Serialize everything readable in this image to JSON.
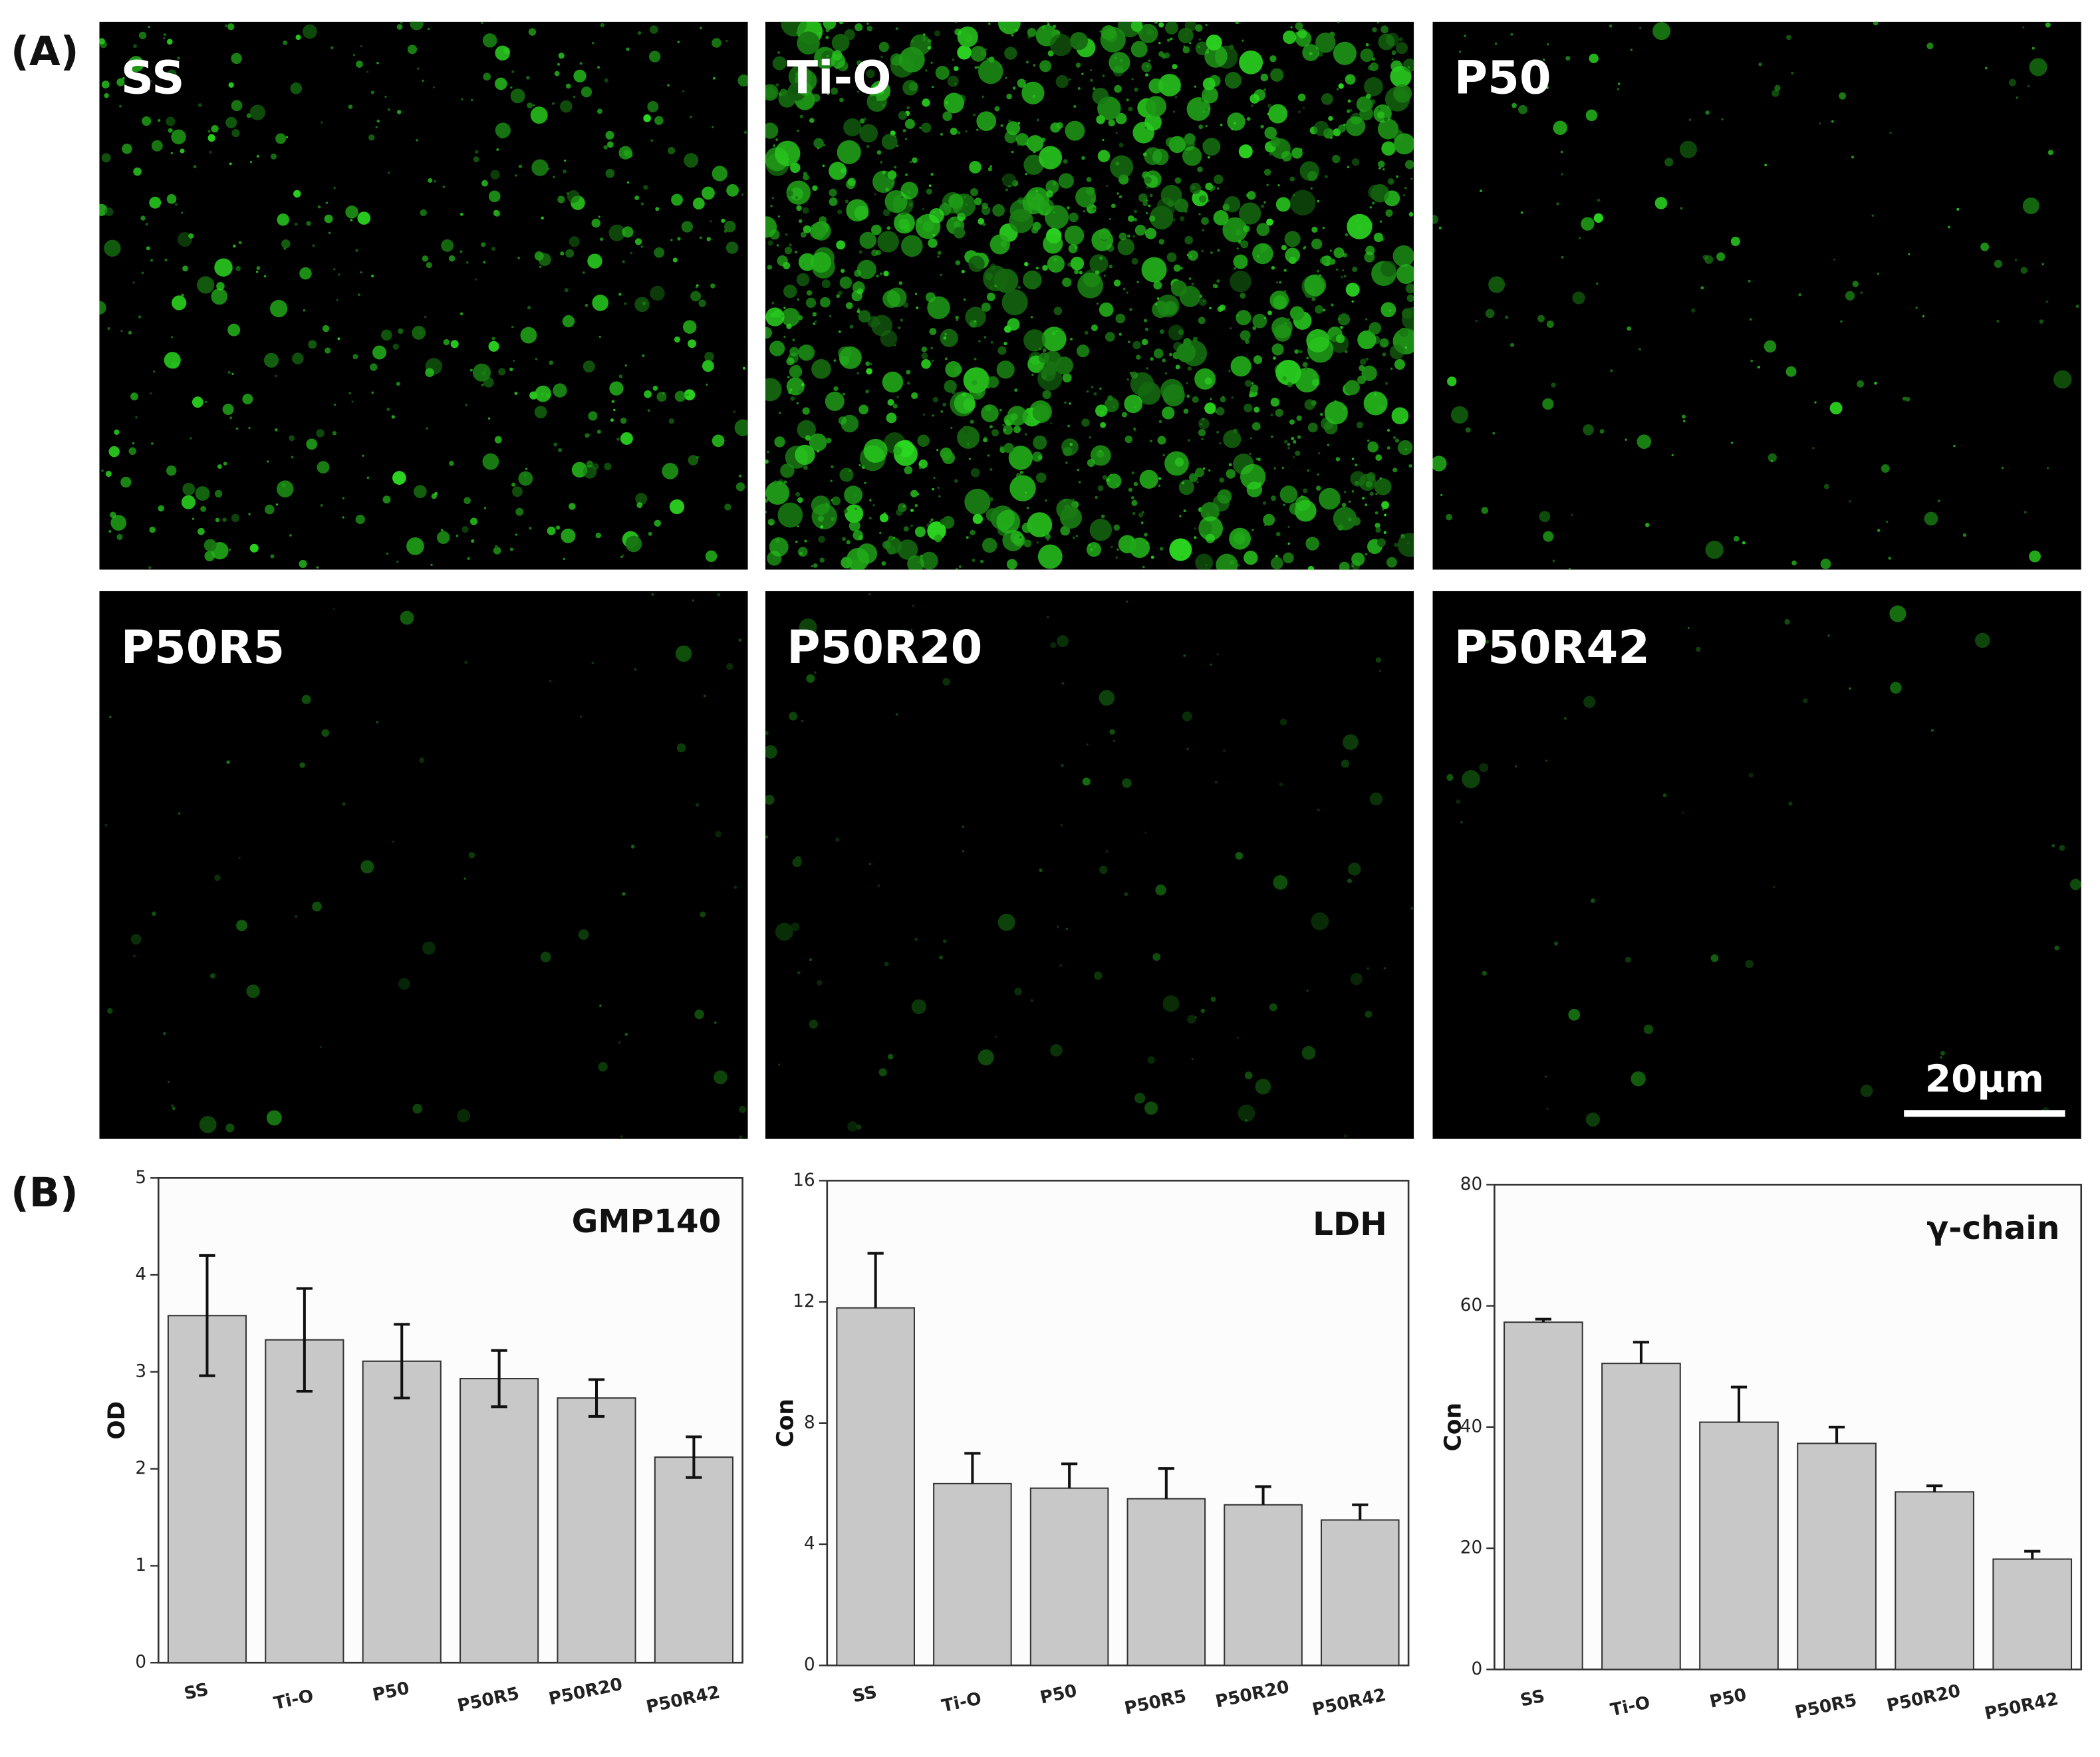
{
  "panel_labels": [
    "(A)",
    "(B)"
  ],
  "micrographs": [
    {
      "label": "SS"
    },
    {
      "label": "Ti-O"
    },
    {
      "label": "P50"
    },
    {
      "label": "P50R5"
    },
    {
      "label": "P50R20"
    },
    {
      "label": "P50R42"
    }
  ],
  "scale_bar": "20μm",
  "chart_data": [
    {
      "type": "bar",
      "title": "GMP140",
      "y_label": "OD",
      "categories": [
        "SS",
        "Ti-O",
        "P50",
        "P50R5",
        "P50R20",
        "P50R42"
      ],
      "values": [
        3.58,
        3.33,
        3.11,
        2.93,
        2.73,
        2.12
      ],
      "errors": [
        0.62,
        0.53,
        0.38,
        0.29,
        0.19,
        0.21
      ],
      "error_bars": "both",
      "color": "#c8c8c8",
      "ylim": [
        0,
        5
      ],
      "yticks": [
        0,
        1,
        2,
        3,
        4,
        5
      ]
    },
    {
      "type": "bar",
      "title": "LDH",
      "y_label": "Con",
      "categories": [
        "SS",
        "Ti-O",
        "P50",
        "P50R5",
        "P50R20",
        "P50R42"
      ],
      "values": [
        11.8,
        6.0,
        5.85,
        5.5,
        5.3,
        4.8
      ],
      "errors": [
        1.8,
        1.0,
        0.8,
        1.0,
        0.6,
        0.5
      ],
      "error_bars": "up",
      "color": "#c8c8c8",
      "ylim": [
        0,
        16
      ],
      "yticks": [
        0,
        4,
        8,
        12,
        16
      ]
    },
    {
      "type": "bar",
      "title": "γ-chain",
      "y_label": "Con",
      "categories": [
        "SS",
        "Ti-O",
        "P50",
        "P50R5",
        "P50R20",
        "P50R42"
      ],
      "values": [
        57.3,
        50.5,
        40.8,
        37.3,
        29.3,
        18.2
      ],
      "errors": [
        0.5,
        3.5,
        5.8,
        2.7,
        1.0,
        1.3
      ],
      "error_bars": "up",
      "color": "#c8c8c8",
      "ylim": [
        0,
        80
      ],
      "yticks": [
        0,
        20,
        40,
        60,
        80
      ]
    }
  ]
}
